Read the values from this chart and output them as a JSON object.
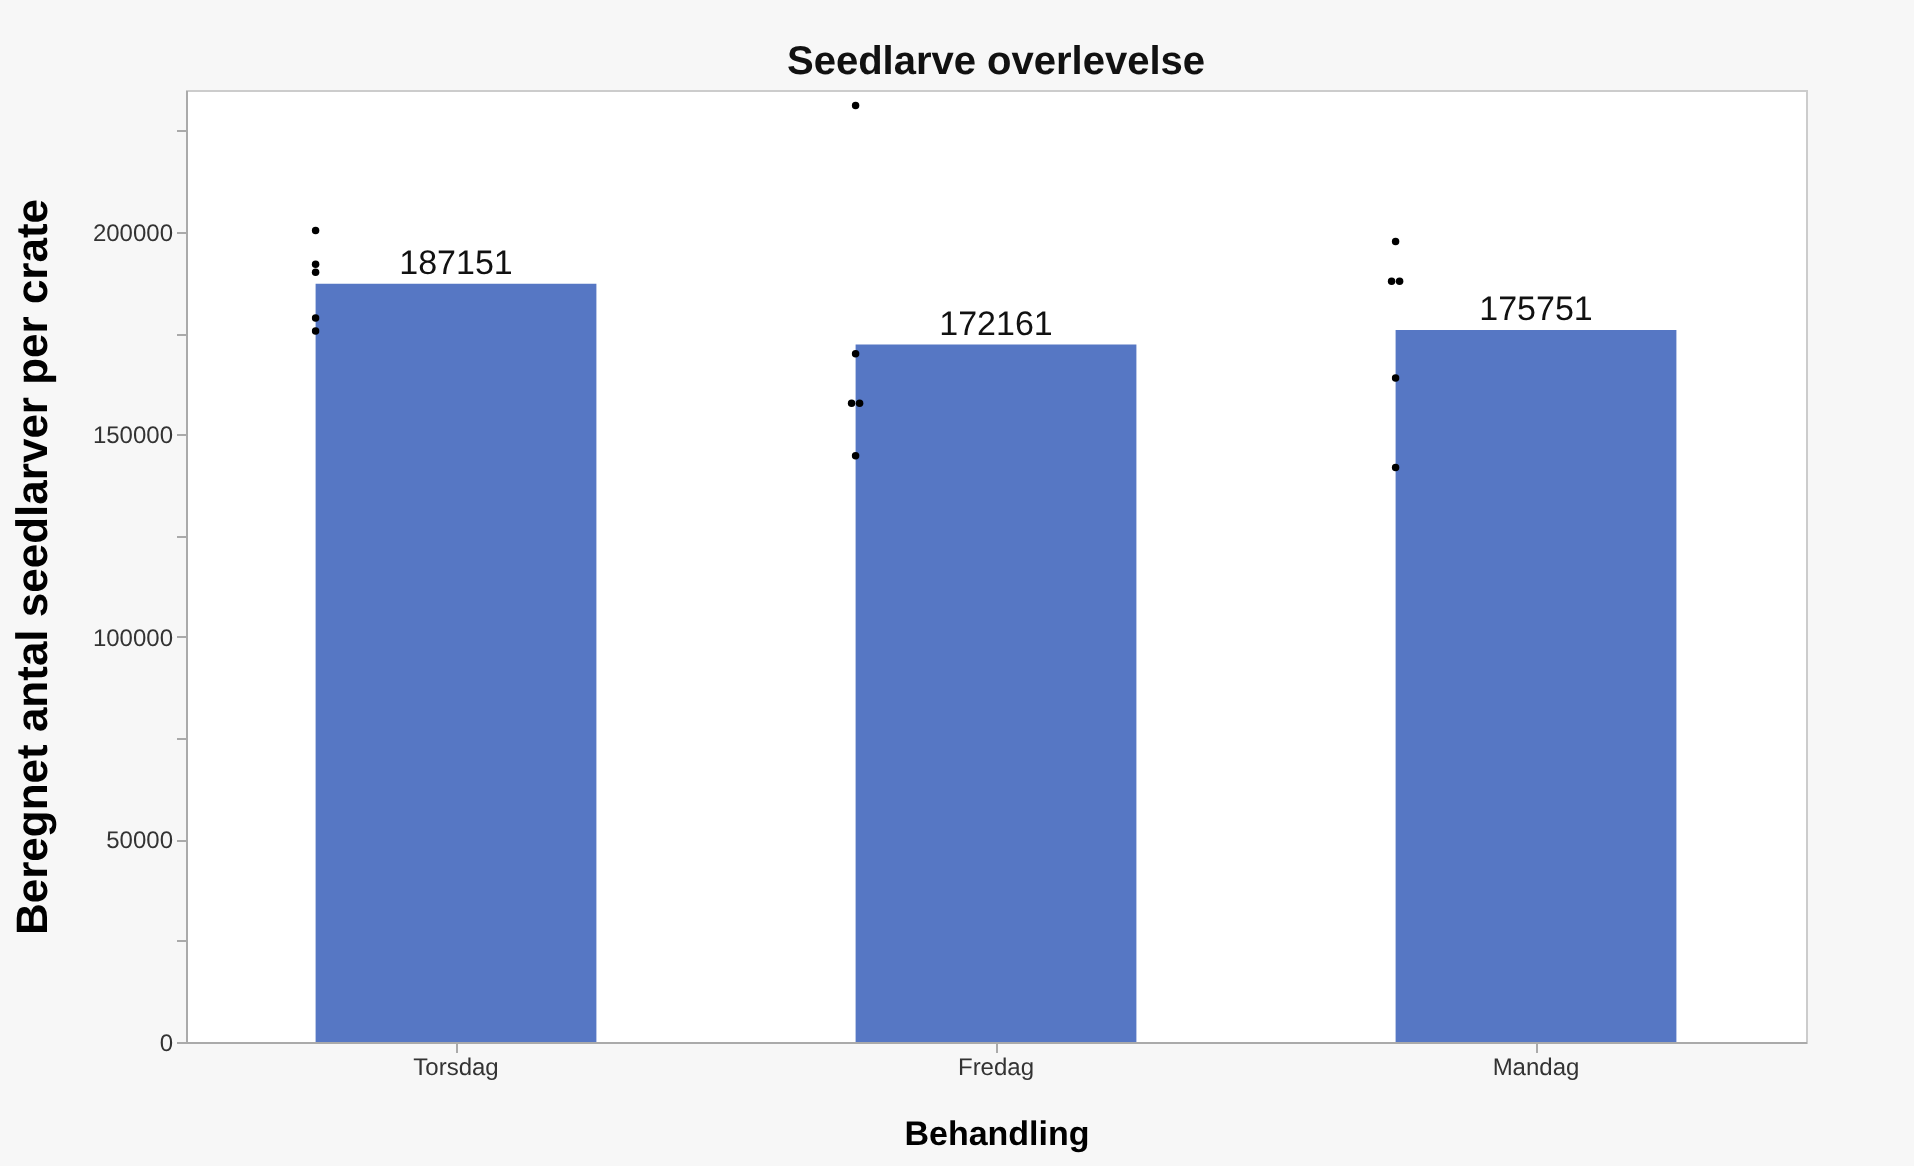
{
  "chart_data": {
    "type": "bar",
    "title": "Seedlarve overlevelse",
    "xlabel": "Behandling",
    "ylabel": "Beregnet antal seedlarver per crate",
    "categories": [
      "Torsdag",
      "Fredag",
      "Mandag"
    ],
    "series": [
      {
        "color": "#5677c4",
        "values": [
          187151,
          172161,
          175751
        ],
        "value_labels": [
          "187151",
          "172161",
          "175751"
        ]
      },
      {
        "type": "scatter",
        "color": "#000000",
        "x": [
          "Torsdag",
          "Torsdag",
          "Torsdag",
          "Torsdag",
          "Torsdag",
          "Fredag",
          "Fredag",
          "Fredag",
          "Fredag",
          "Fredag",
          "Mandag",
          "Mandag",
          "Mandag",
          "Mandag",
          "Mandag"
        ],
        "values": [
          200300,
          192000,
          190000,
          178700,
          175500,
          231200,
          169900,
          157700,
          157700,
          144700,
          197600,
          187800,
          187800,
          163900,
          141800
        ]
      }
    ],
    "ylim": [
      0,
      235000
    ],
    "yticks": [
      0,
      {
        "value": 25000,
        "label": null
      },
      50000,
      {
        "value": 75000,
        "label": null
      },
      100000,
      {
        "value": 125000,
        "label": null
      },
      150000,
      {
        "value": 175000,
        "label": null
      },
      200000,
      {
        "value": 225000,
        "label": null
      }
    ],
    "grid": false,
    "marker": "circle"
  }
}
